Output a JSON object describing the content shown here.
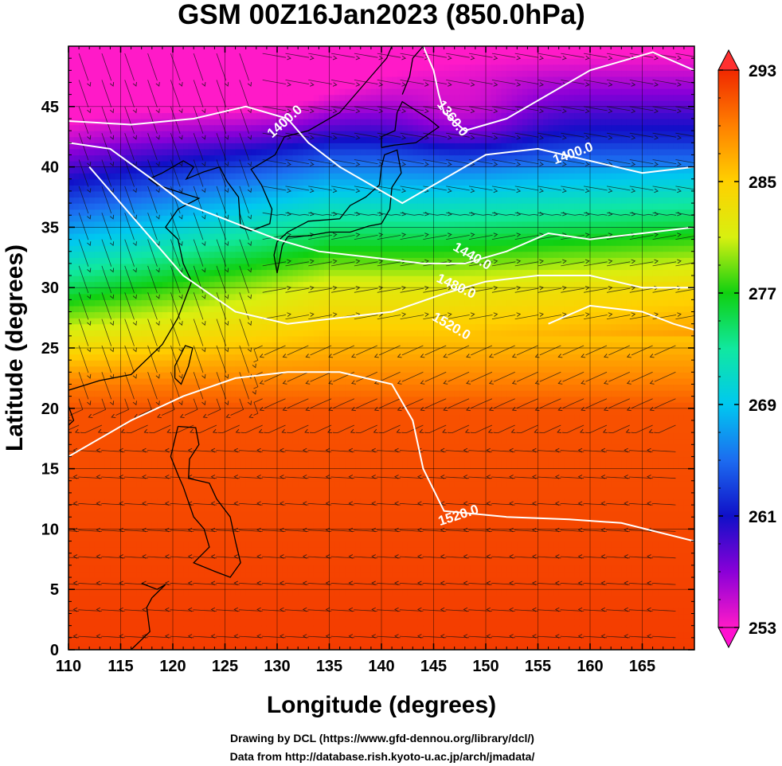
{
  "title": "GSM 00Z16Jan2023 (850.0hPa)",
  "xlabel": "Longitude (degrees)",
  "ylabel": "Latitude  (degrees)",
  "credits": [
    "Drawing by DCL (https://www.gfd-dennou.org/library/dcl/)",
    "Data from http://database.rish.kyoto-u.ac.jp/arch/jmadata/"
  ],
  "map": {
    "lon_range": [
      110,
      170
    ],
    "lat_range": [
      0,
      50
    ],
    "lon_ticks": [
      "110",
      "115",
      "120",
      "125",
      "130",
      "135",
      "140",
      "145",
      "150",
      "155",
      "160",
      "165"
    ],
    "lat_ticks": [
      "0",
      "5",
      "10",
      "15",
      "20",
      "25",
      "30",
      "35",
      "40",
      "45"
    ],
    "grid": true
  },
  "colorbar": {
    "min": 253,
    "max": 293,
    "ticks": [
      "253",
      "261",
      "269",
      "277",
      "285",
      "293"
    ],
    "colors": [
      "#ff1ac8",
      "#8a00d8",
      "#1010c8",
      "#1c6cf0",
      "#00c8f0",
      "#10e8a0",
      "#10d010",
      "#d8f010",
      "#ffd000",
      "#ff8000",
      "#f02800"
    ]
  },
  "contour_labels": [
    {
      "text": "1360.0",
      "lon": 146.5,
      "lat": 43.8,
      "angle": -52
    },
    {
      "text": "1400.0",
      "lon": 131.0,
      "lat": 43.5,
      "angle": 42
    },
    {
      "text": "1400.0",
      "lon": 158.5,
      "lat": 40.8,
      "angle": 20
    },
    {
      "text": "1440.0",
      "lon": 148.5,
      "lat": 32.3,
      "angle": -30
    },
    {
      "text": "1480.0",
      "lon": 147.0,
      "lat": 29.8,
      "angle": -25
    },
    {
      "text": "1520.0",
      "lon": 146.5,
      "lat": 26.5,
      "angle": -30
    },
    {
      "text": "1520.0",
      "lon": 147.5,
      "lat": 10.8,
      "angle": 18
    }
  ],
  "contours": [
    {
      "value": 1360,
      "lonlat": [
        [
          144,
          50
        ],
        [
          145,
          48
        ],
        [
          145.5,
          46
        ],
        [
          146,
          44.5
        ],
        [
          148,
          43
        ],
        [
          152,
          44
        ],
        [
          156,
          46
        ],
        [
          160,
          48
        ],
        [
          166,
          49.5
        ],
        [
          170,
          48
        ]
      ]
    },
    {
      "value": 1400,
      "lonlat": [
        [
          110,
          43.8
        ],
        [
          116,
          43.5
        ],
        [
          122,
          44
        ],
        [
          127,
          45
        ],
        [
          131,
          44
        ],
        [
          133,
          42
        ],
        [
          136,
          40
        ],
        [
          139,
          38.5
        ],
        [
          142,
          37
        ],
        [
          146,
          39
        ],
        [
          150,
          41
        ],
        [
          155,
          41.5
        ],
        [
          160,
          40.5
        ],
        [
          165,
          39.5
        ],
        [
          170,
          40
        ]
      ]
    },
    {
      "value": 1440,
      "lonlat": [
        [
          110,
          42
        ],
        [
          114,
          41.5
        ],
        [
          118,
          39
        ],
        [
          121,
          37
        ],
        [
          124,
          36
        ],
        [
          127,
          35
        ],
        [
          130,
          34
        ],
        [
          134,
          33
        ],
        [
          139,
          32.5
        ],
        [
          144,
          32
        ],
        [
          148,
          32
        ],
        [
          152,
          33
        ],
        [
          156,
          34.5
        ],
        [
          160,
          34
        ],
        [
          165,
          34.5
        ],
        [
          170,
          35
        ]
      ]
    },
    {
      "value": 1480,
      "lonlat": [
        [
          112,
          40
        ],
        [
          117,
          35
        ],
        [
          121,
          31
        ],
        [
          126,
          28
        ],
        [
          131,
          27
        ],
        [
          136,
          27.5
        ],
        [
          141,
          28
        ],
        [
          146,
          29.5
        ],
        [
          150,
          30.5
        ],
        [
          155,
          31
        ],
        [
          160,
          31
        ],
        [
          165,
          30
        ],
        [
          170,
          30
        ]
      ]
    },
    {
      "value": 1520,
      "lonlat": [
        [
          110,
          16
        ],
        [
          116,
          19
        ],
        [
          121,
          21
        ],
        [
          126,
          22.5
        ],
        [
          131,
          23
        ],
        [
          136,
          23
        ],
        [
          141,
          22
        ],
        [
          143,
          19
        ],
        [
          144,
          15
        ],
        [
          146,
          11.5
        ],
        [
          152,
          11
        ],
        [
          158,
          10.8
        ],
        [
          163,
          10.5
        ],
        [
          170,
          9
        ]
      ]
    },
    {
      "value": 1520,
      "lonlat": [
        [
          156,
          27
        ],
        [
          160,
          28.5
        ],
        [
          165,
          28
        ],
        [
          168,
          27
        ],
        [
          170,
          26.5
        ]
      ]
    }
  ]
}
